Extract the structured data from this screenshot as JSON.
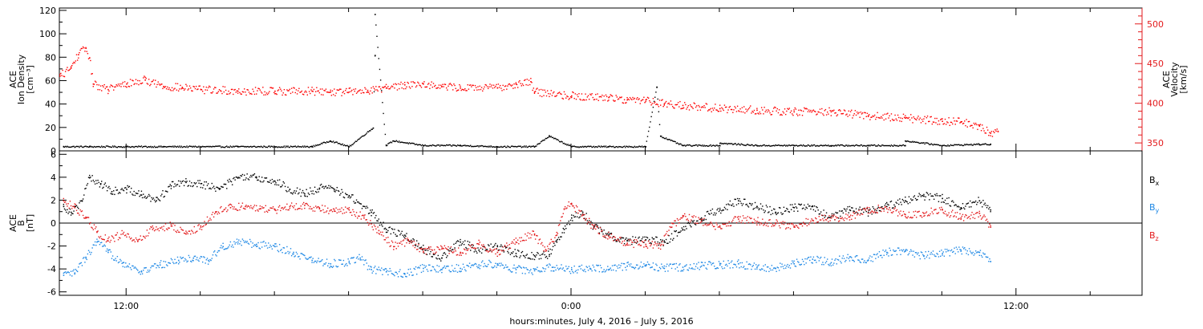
{
  "footer": "hours:minutes, July  4, 2016 – July  5, 2016",
  "chart_data": [
    {
      "type": "scatter",
      "panel": "top",
      "x_unit": "hours from 2016-07-04 00:00",
      "xlim": [
        10.2,
        39.4
      ],
      "x_ticks": [
        {
          "x": 12,
          "label": "12:00"
        },
        {
          "x": 24,
          "label": "0:00"
        },
        {
          "x": 36,
          "label": "12:00"
        }
      ],
      "x_minor_ticks": [
        14,
        16,
        18,
        20,
        22,
        26,
        28,
        30,
        32,
        34,
        38
      ],
      "ylabel_lines": [
        "ACE",
        "Ion Density",
        "[cm⁻³]"
      ],
      "ylim": [
        0,
        122
      ],
      "y_ticks": [
        0,
        20,
        40,
        60,
        80,
        100,
        120
      ],
      "y2label_lines": [
        "ACE",
        "Velocity",
        "[km/s]"
      ],
      "y2lim": [
        340,
        520
      ],
      "y2_ticks": [
        350,
        400,
        450,
        500
      ],
      "series": [
        {
          "color": "#000000",
          "axis": "left",
          "points": [
            [
              10.3,
              4
            ],
            [
              11,
              4
            ],
            [
              12,
              4
            ],
            [
              13,
              4
            ],
            [
              14,
              4
            ],
            [
              15,
              4
            ],
            [
              16,
              4
            ],
            [
              17,
              4
            ],
            [
              18,
              4
            ],
            [
              19,
              5
            ],
            [
              20,
              5
            ],
            [
              21,
              5
            ],
            [
              22,
              4
            ],
            [
              23,
              4
            ],
            [
              24,
              4
            ],
            [
              25,
              4
            ],
            [
              26,
              4
            ],
            [
              27,
              5
            ],
            [
              28,
              5
            ],
            [
              29,
              5
            ],
            [
              30,
              5
            ],
            [
              31,
              5
            ],
            [
              32,
              5
            ],
            [
              33,
              5
            ],
            [
              34,
              5
            ],
            [
              35,
              6
            ],
            [
              35.3,
              6
            ],
            [
              17.5,
              9
            ],
            [
              19.2,
              9
            ],
            [
              23.4,
              13
            ],
            [
              26.4,
              13
            ],
            [
              28,
              7
            ],
            [
              33,
              9
            ],
            [
              18.7,
              82
            ],
            [
              18.7,
              117
            ],
            [
              18.65,
              20
            ],
            [
              26.3,
              55
            ]
          ]
        },
        {
          "color": "#ff0000",
          "axis": "right",
          "points": [
            [
              10.2,
              435
            ],
            [
              10.5,
              445
            ],
            [
              10.7,
              462
            ],
            [
              10.9,
              470
            ],
            [
              11,
              458
            ],
            [
              11.1,
              425
            ],
            [
              11.5,
              418
            ],
            [
              12,
              425
            ],
            [
              12.5,
              430
            ],
            [
              13,
              422
            ],
            [
              13.5,
              420
            ],
            [
              14,
              418
            ],
            [
              15,
              416
            ],
            [
              16,
              416
            ],
            [
              17,
              416
            ],
            [
              17.5,
              415
            ],
            [
              18,
              415
            ],
            [
              18.5,
              417
            ],
            [
              19,
              420
            ],
            [
              19.5,
              424
            ],
            [
              20,
              425
            ],
            [
              20.5,
              422
            ],
            [
              21,
              420
            ],
            [
              22,
              420
            ],
            [
              22.5,
              425
            ],
            [
              22.9,
              428
            ],
            [
              23,
              415
            ],
            [
              24,
              410
            ],
            [
              25,
              408
            ],
            [
              25.5,
              405
            ],
            [
              26,
              405
            ],
            [
              26.5,
              400
            ],
            [
              27,
              398
            ],
            [
              28,
              394
            ],
            [
              29,
              392
            ],
            [
              30,
              390
            ],
            [
              31,
              390
            ],
            [
              32,
              385
            ],
            [
              33,
              382
            ],
            [
              34,
              378
            ],
            [
              34.5,
              377
            ],
            [
              35,
              372
            ],
            [
              35.5,
              365
            ],
            [
              35.3,
              363
            ]
          ]
        }
      ]
    },
    {
      "type": "scatter",
      "panel": "bottom",
      "x_unit": "hours from 2016-07-04 00:00",
      "xlim": [
        10.2,
        39.4
      ],
      "x_ticks": [
        {
          "x": 12,
          "label": "12:00"
        },
        {
          "x": 24,
          "label": "0:00"
        },
        {
          "x": 36,
          "label": "12:00"
        }
      ],
      "x_minor_ticks": [
        14,
        16,
        18,
        20,
        22,
        26,
        28,
        30,
        32,
        34,
        38
      ],
      "ylabel_lines": [
        "ACE",
        "B",
        "[nT]"
      ],
      "ylim": [
        -6.3,
        6.3
      ],
      "y_ticks": [
        -6,
        -4,
        -2,
        0,
        2,
        4,
        6
      ],
      "zero_line": true,
      "series": [
        {
          "name": "Bx",
          "color": "#000000",
          "legend_main": "B",
          "legend_sub": "x",
          "points": [
            [
              10.3,
              1.5
            ],
            [
              10.5,
              1
            ],
            [
              10.8,
              2
            ],
            [
              11,
              4
            ],
            [
              11.3,
              3.5
            ],
            [
              11.6,
              2.8
            ],
            [
              12,
              3
            ],
            [
              12.4,
              2.5
            ],
            [
              12.8,
              2
            ],
            [
              13.2,
              3.3
            ],
            [
              13.6,
              3.6
            ],
            [
              14,
              3.5
            ],
            [
              14.5,
              3
            ],
            [
              15,
              4
            ],
            [
              15.5,
              4
            ],
            [
              16,
              3.7
            ],
            [
              16.4,
              3
            ],
            [
              16.8,
              2.6
            ],
            [
              17.2,
              3.1
            ],
            [
              17.6,
              3
            ],
            [
              18,
              2.4
            ],
            [
              18.6,
              1
            ],
            [
              19,
              -0.5
            ],
            [
              19.5,
              -1
            ],
            [
              20,
              -2.2
            ],
            [
              20.5,
              -3
            ],
            [
              21,
              -1.6
            ],
            [
              21.5,
              -2.3
            ],
            [
              22,
              -2
            ],
            [
              22.5,
              -2.6
            ],
            [
              23,
              -2.8
            ],
            [
              23.4,
              -2.7
            ],
            [
              23.6,
              -1.6
            ],
            [
              23.8,
              -0.5
            ],
            [
              24,
              0.5
            ],
            [
              24.3,
              1
            ],
            [
              24.6,
              -0.3
            ],
            [
              25,
              -1
            ],
            [
              25.5,
              -1.5
            ],
            [
              26,
              -1.4
            ],
            [
              26.5,
              -1.6
            ],
            [
              27,
              -0.5
            ],
            [
              27.5,
              0.5
            ],
            [
              28,
              1.2
            ],
            [
              28.5,
              2
            ],
            [
              29,
              1.5
            ],
            [
              29.5,
              1
            ],
            [
              30,
              1.4
            ],
            [
              30.5,
              1.5
            ],
            [
              31,
              0.5
            ],
            [
              31.5,
              1.2
            ],
            [
              32,
              1
            ],
            [
              32.5,
              1.5
            ],
            [
              33,
              2
            ],
            [
              33.5,
              2.4
            ],
            [
              34,
              2.2
            ],
            [
              34.5,
              1.4
            ],
            [
              35,
              2
            ],
            [
              35.3,
              1.2
            ]
          ]
        },
        {
          "name": "By",
          "color": "#1e88e5",
          "legend_main": "B",
          "legend_sub": "y",
          "points": [
            [
              10.3,
              -4.5
            ],
            [
              10.6,
              -4.3
            ],
            [
              10.9,
              -3
            ],
            [
              11.2,
              -1.6
            ],
            [
              11.5,
              -2.5
            ],
            [
              11.9,
              -3.4
            ],
            [
              12.4,
              -4.2
            ],
            [
              12.9,
              -3.6
            ],
            [
              13.4,
              -3.2
            ],
            [
              13.8,
              -3
            ],
            [
              14.2,
              -3.2
            ],
            [
              14.6,
              -2
            ],
            [
              15,
              -1.6
            ],
            [
              15.5,
              -1.8
            ],
            [
              16,
              -2
            ],
            [
              16.5,
              -2.5
            ],
            [
              17,
              -3.2
            ],
            [
              17.5,
              -3.5
            ],
            [
              18,
              -3.4
            ],
            [
              18.3,
              -3
            ],
            [
              18.6,
              -4
            ],
            [
              19,
              -4.2
            ],
            [
              19.5,
              -4.4
            ],
            [
              20,
              -3.9
            ],
            [
              20.5,
              -4
            ],
            [
              21,
              -3.9
            ],
            [
              21.5,
              -3.6
            ],
            [
              22,
              -3.5
            ],
            [
              22.5,
              -4
            ],
            [
              23,
              -4.1
            ],
            [
              23.5,
              -3.8
            ],
            [
              24,
              -4
            ],
            [
              24.5,
              -3.9
            ],
            [
              25,
              -4
            ],
            [
              25.5,
              -3.7
            ],
            [
              26,
              -3.6
            ],
            [
              26.5,
              -3.9
            ],
            [
              27,
              -3.8
            ],
            [
              27.5,
              -3.7
            ],
            [
              28,
              -3.6
            ],
            [
              28.5,
              -3.5
            ],
            [
              29,
              -3.8
            ],
            [
              29.5,
              -3.9
            ],
            [
              30,
              -3.5
            ],
            [
              30.5,
              -3.1
            ],
            [
              31,
              -3.4
            ],
            [
              31.5,
              -2.9
            ],
            [
              32,
              -3.2
            ],
            [
              32.5,
              -2.5
            ],
            [
              33,
              -2.4
            ],
            [
              33.5,
              -2.8
            ],
            [
              34,
              -2.6
            ],
            [
              34.5,
              -2.3
            ],
            [
              35,
              -2.5
            ],
            [
              35.3,
              -3.3
            ]
          ]
        },
        {
          "name": "Bz",
          "color": "#e31a1c",
          "legend_main": "B",
          "legend_sub": "z",
          "points": [
            [
              10.3,
              2
            ],
            [
              10.6,
              1.4
            ],
            [
              10.9,
              0.5
            ],
            [
              11.2,
              -0.7
            ],
            [
              11.5,
              -1.5
            ],
            [
              11.9,
              -0.9
            ],
            [
              12.3,
              -1.5
            ],
            [
              12.7,
              -0.5
            ],
            [
              13.2,
              -0.2
            ],
            [
              13.6,
              -0.9
            ],
            [
              14,
              -0.3
            ],
            [
              14.4,
              1
            ],
            [
              14.8,
              1.4
            ],
            [
              15.2,
              1.5
            ],
            [
              15.6,
              1.3
            ],
            [
              16,
              1.2
            ],
            [
              16.4,
              1.5
            ],
            [
              16.8,
              1.6
            ],
            [
              17.2,
              1.3
            ],
            [
              17.6,
              1.1
            ],
            [
              18,
              1.2
            ],
            [
              18.4,
              0.5
            ],
            [
              18.8,
              -0.6
            ],
            [
              19.2,
              -2
            ],
            [
              19.6,
              -1.5
            ],
            [
              20,
              -2.4
            ],
            [
              20.5,
              -2.2
            ],
            [
              21,
              -2.5
            ],
            [
              21.5,
              -1.8
            ],
            [
              22,
              -2.5
            ],
            [
              22.5,
              -1.6
            ],
            [
              23,
              -0.9
            ],
            [
              23.3,
              -2.4
            ],
            [
              23.6,
              -1
            ],
            [
              23.8,
              1.3
            ],
            [
              24,
              1.7
            ],
            [
              24.3,
              0.8
            ],
            [
              24.6,
              -0.4
            ],
            [
              25,
              -1.1
            ],
            [
              25.5,
              -1.7
            ],
            [
              26,
              -1.8
            ],
            [
              26.4,
              -1.9
            ],
            [
              26.7,
              -0.3
            ],
            [
              27,
              0.6
            ],
            [
              27.5,
              0.2
            ],
            [
              28,
              -0.3
            ],
            [
              28.5,
              0.4
            ],
            [
              29,
              0.2
            ],
            [
              29.5,
              0
            ],
            [
              30,
              -0.3
            ],
            [
              30.5,
              0.3
            ],
            [
              31,
              0.5
            ],
            [
              31.5,
              0.6
            ],
            [
              32,
              1.2
            ],
            [
              32.5,
              1.3
            ],
            [
              33,
              0.8
            ],
            [
              33.5,
              0.9
            ],
            [
              34,
              1.2
            ],
            [
              34.5,
              0.5
            ],
            [
              35,
              0.9
            ],
            [
              35.3,
              -0.3
            ]
          ]
        }
      ]
    }
  ]
}
